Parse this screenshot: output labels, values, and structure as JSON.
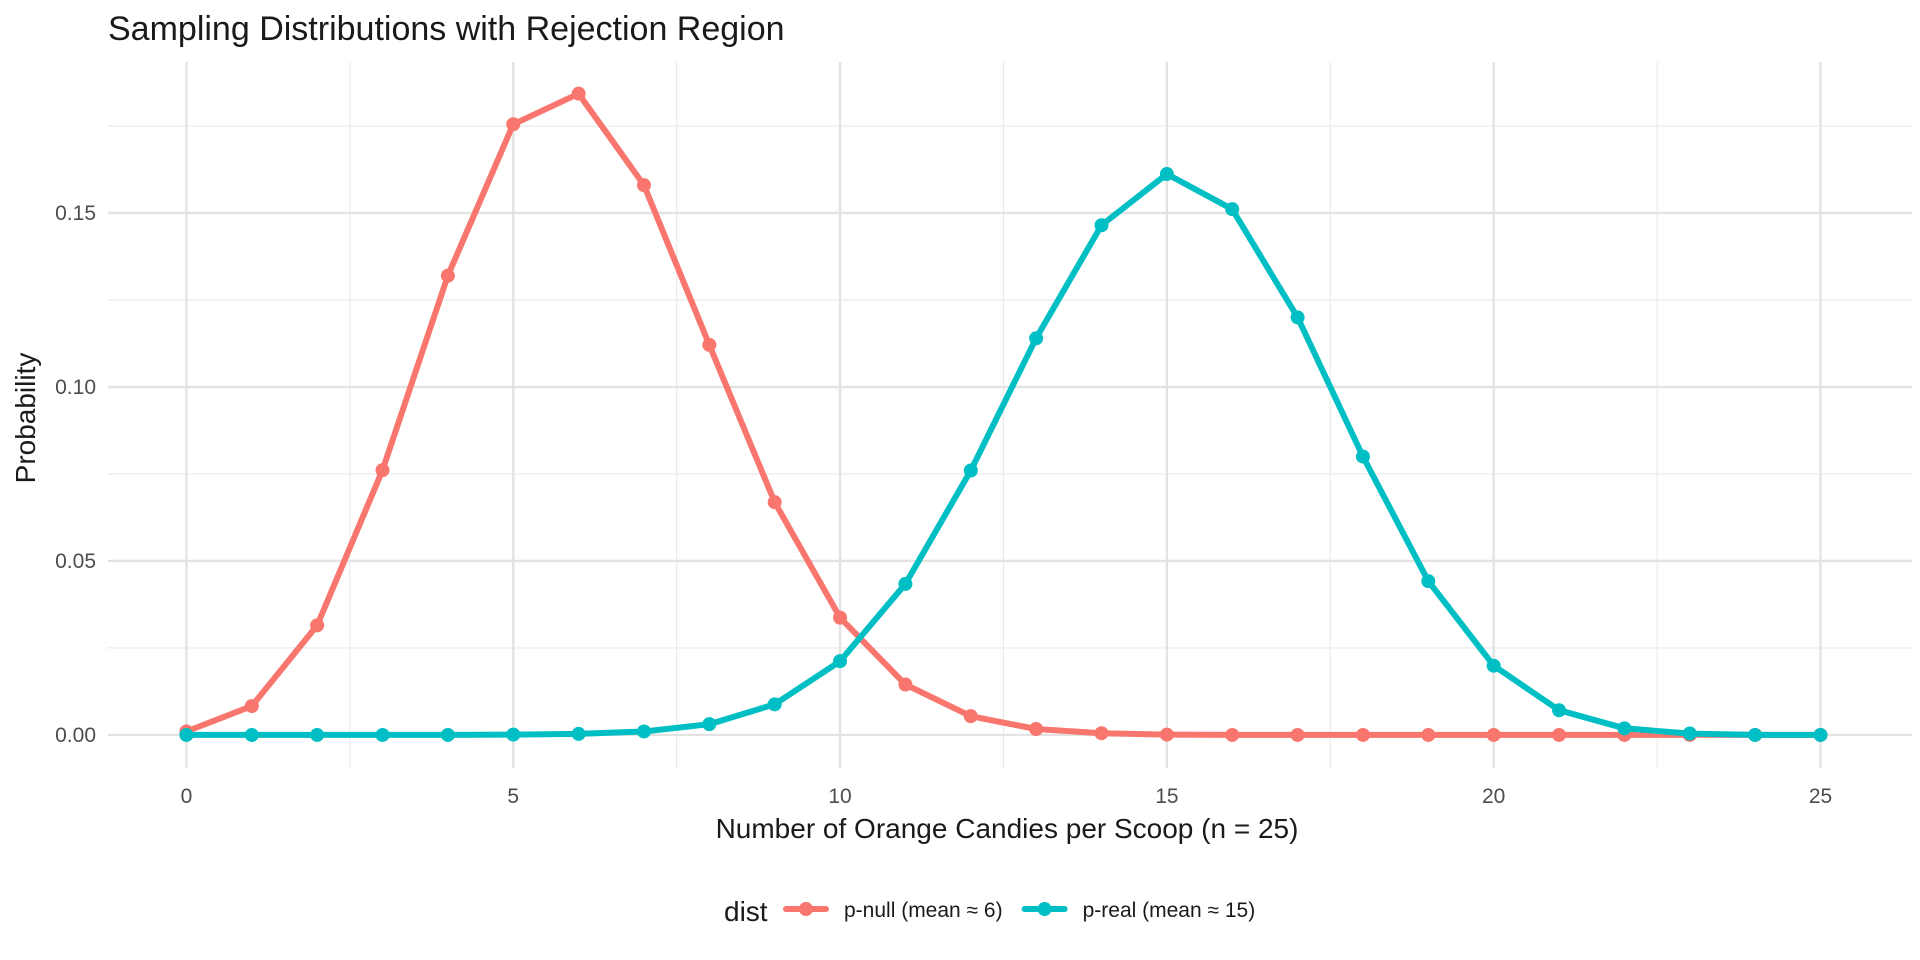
{
  "chart_data": {
    "type": "line",
    "title": "Sampling Distributions with Rejection Region",
    "xlabel": "Number of Orange Candies per Scoop (n = 25)",
    "ylabel": "Probability",
    "xlim": [
      -1.2,
      26.4
    ],
    "ylim": [
      -0.0095,
      0.1934
    ],
    "x_ticks": [
      0,
      5,
      10,
      15,
      20,
      25
    ],
    "x_tick_labels": [
      "0",
      "5",
      "10",
      "15",
      "20",
      "25"
    ],
    "y_ticks": [
      0,
      0.05,
      0.1,
      0.15
    ],
    "y_tick_labels": [
      "0.00",
      "0.05",
      "0.10",
      "0.15"
    ],
    "grid": true,
    "legend": {
      "title": "dist",
      "position": "bottom"
    },
    "x": [
      0,
      1,
      2,
      3,
      4,
      5,
      6,
      7,
      8,
      9,
      10,
      11,
      12,
      13,
      14,
      15,
      16,
      17,
      18,
      19,
      20,
      21,
      22,
      23,
      24,
      25
    ],
    "series": [
      {
        "name": "p-null (mean ≈ 6)",
        "color": "#F8766D",
        "values": [
          0.001,
          0.0083,
          0.0315,
          0.0761,
          0.132,
          0.1755,
          0.1843,
          0.158,
          0.1121,
          0.0669,
          0.0337,
          0.0145,
          0.0054,
          0.0017,
          0.0005,
          0.0001,
          0.0,
          0.0,
          0.0,
          0.0,
          0.0,
          0.0,
          0.0,
          0.0,
          0.0,
          0.0
        ]
      },
      {
        "name": "p-real (mean ≈ 15)",
        "color": "#00BFC4",
        "values": [
          0.0,
          0.0,
          0.0,
          0.0,
          0.0,
          0.0001,
          0.0003,
          0.001,
          0.0031,
          0.0088,
          0.0212,
          0.0434,
          0.076,
          0.114,
          0.1465,
          0.1612,
          0.1511,
          0.12,
          0.08,
          0.0442,
          0.0199,
          0.0071,
          0.0019,
          0.0004,
          0.0,
          0.0
        ]
      }
    ]
  }
}
